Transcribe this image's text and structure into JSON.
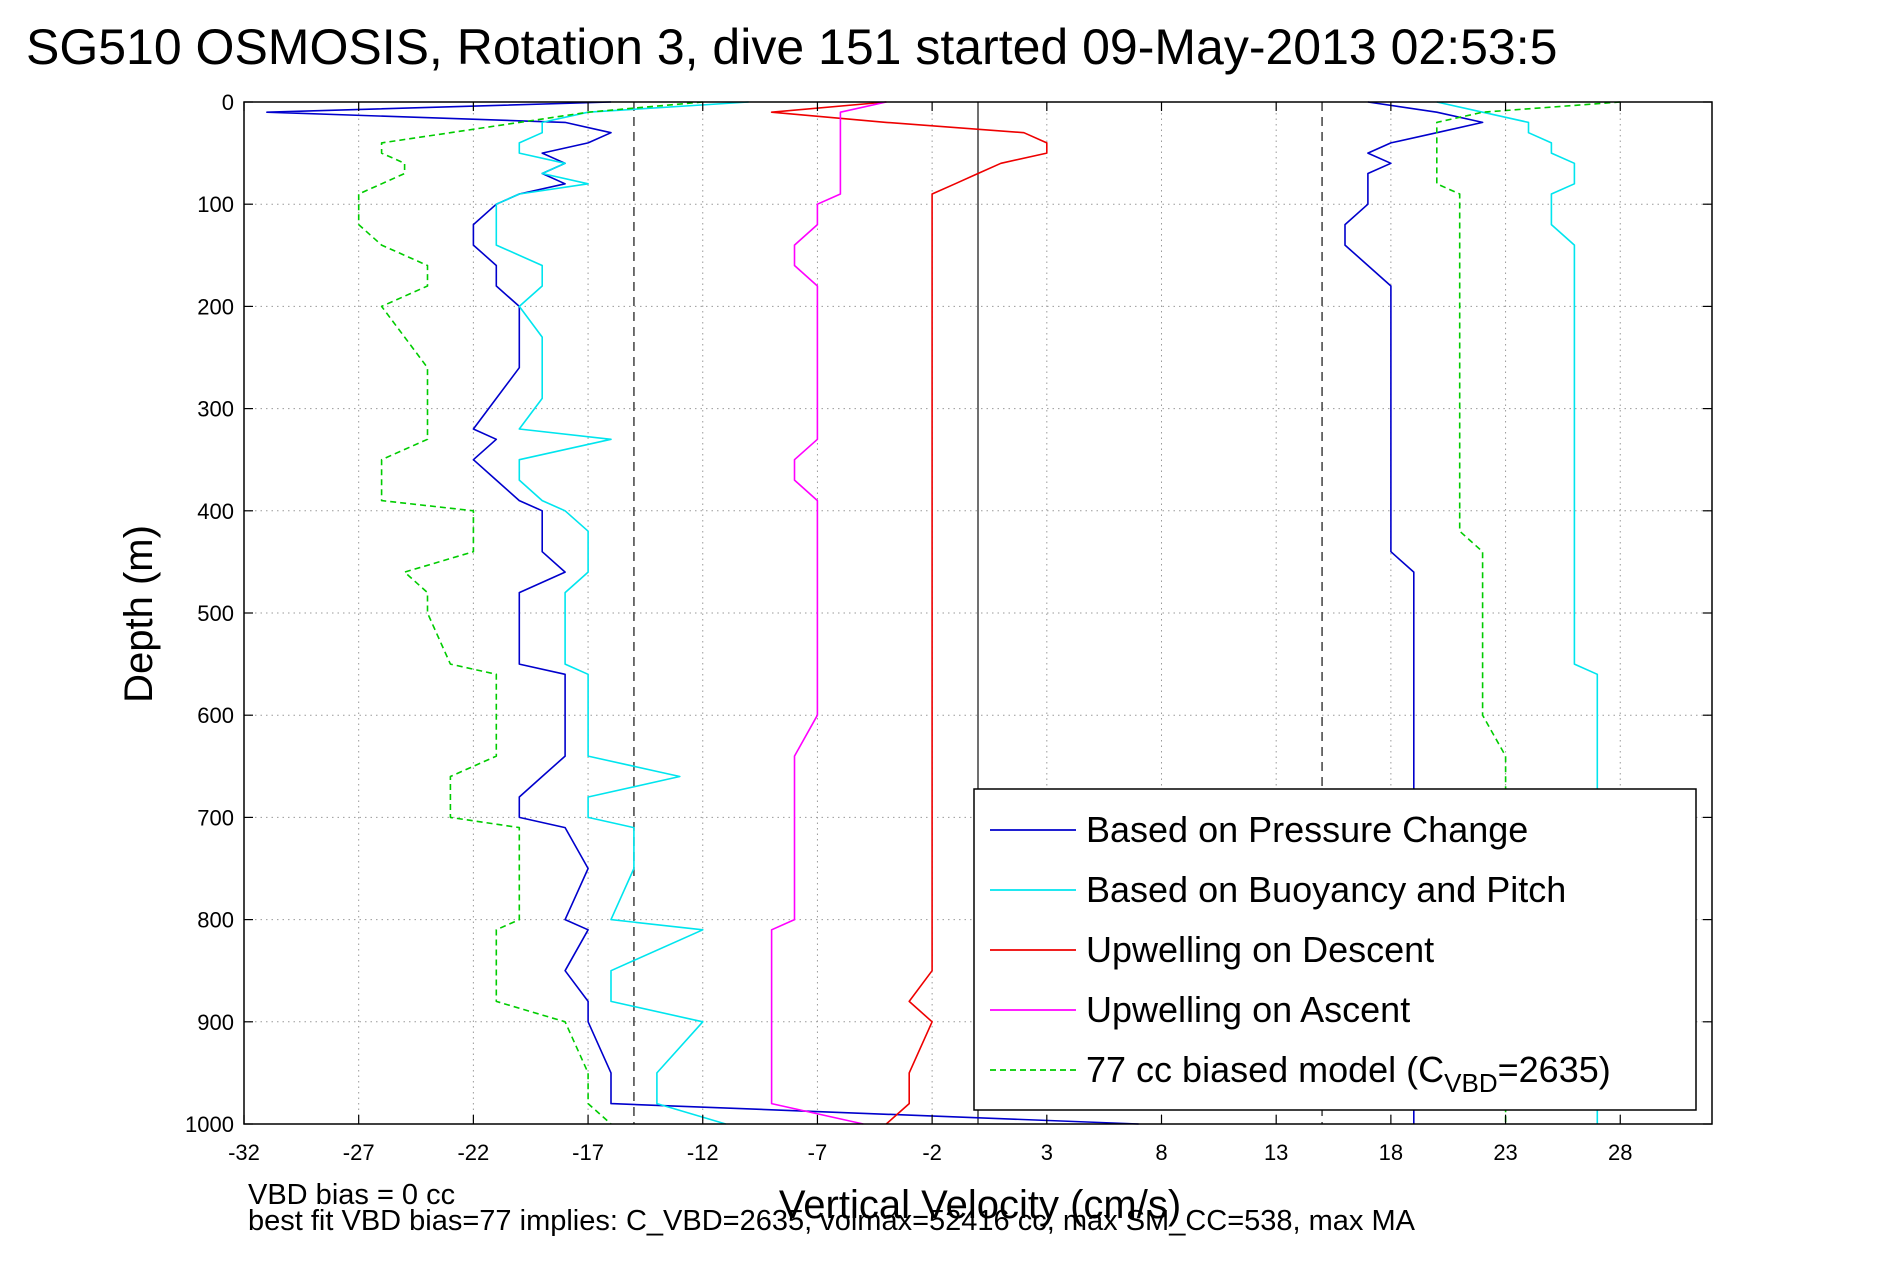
{
  "chart_data": {
    "type": "line",
    "title": "SG510 OSMOSIS, Rotation 3, dive 151 started 09-May-2013 02:53:5",
    "xlabel": "Vertical Velocity (cm/s)",
    "ylabel": "Depth (m)",
    "xlim": [
      -32,
      32
    ],
    "ylim": [
      1000,
      0
    ],
    "y_reversed": true,
    "x_ticks": [
      "-32",
      "-27",
      "-22",
      "-17",
      "-12",
      "-7",
      "-2",
      "3",
      "8",
      "13",
      "18",
      "23",
      "28"
    ],
    "y_ticks": [
      "0",
      "100",
      "200",
      "300",
      "400",
      "500",
      "600",
      "700",
      "800",
      "900",
      "1000"
    ],
    "grid": "dotted",
    "legend_position": "lower-right",
    "reference_lines": [
      {
        "x": -15,
        "style": "dashed"
      },
      {
        "x": 0,
        "style": "solid"
      },
      {
        "x": 15,
        "style": "dashed"
      }
    ],
    "depth": [
      0,
      10,
      20,
      30,
      40,
      50,
      60,
      70,
      80,
      90,
      100,
      120,
      140,
      160,
      180,
      200,
      230,
      260,
      290,
      320,
      330,
      350,
      370,
      390,
      400,
      420,
      440,
      460,
      480,
      500,
      550,
      560,
      600,
      640,
      660,
      680,
      700,
      710,
      750,
      800,
      810,
      850,
      880,
      900,
      950,
      980,
      1000
    ],
    "series": [
      {
        "name": "Based on Pressure Change",
        "color": "#0000cc",
        "style": "solid",
        "segments": [
          {
            "depth": [
              0,
              10,
              20,
              30,
              40,
              50,
              60,
              70,
              80,
              90,
              100,
              120,
              140,
              160,
              180,
              200,
              230,
              260,
              290,
              320,
              330,
              350,
              370,
              390,
              400,
              420,
              440,
              460,
              480,
              500,
              550,
              560,
              600,
              640,
              660,
              680,
              700,
              710,
              750,
              800,
              810,
              850,
              880,
              900,
              950,
              980,
              1000
            ],
            "values": [
              -16,
              -31,
              -18,
              -16,
              -17,
              -19,
              -18,
              -19,
              -18,
              -20,
              -21,
              -22,
              -22,
              -21,
              -21,
              -20,
              -20,
              -20,
              -21,
              -22,
              -21,
              -22,
              -21,
              -20,
              -19,
              -19,
              -19,
              -18,
              -20,
              -20,
              -20,
              -18,
              -18,
              -18,
              -19,
              -20,
              -20,
              -18,
              -17,
              -18,
              -17,
              -18,
              -17,
              -17,
              -16,
              -16,
              7
            ]
          },
          {
            "depth": [
              0,
              10,
              20,
              30,
              40,
              50,
              60,
              70,
              80,
              90,
              100,
              120,
              140,
              160,
              180,
              200,
              230,
              260,
              290,
              320,
              330,
              350,
              370,
              390,
              400,
              420,
              440,
              460,
              480,
              500,
              550,
              560,
              600,
              640,
              660,
              680,
              700,
              710,
              750,
              800,
              810,
              850,
              880,
              900,
              950,
              980,
              1000
            ],
            "values": [
              17,
              20,
              22,
              20,
              18,
              17,
              18,
              17,
              17,
              17,
              17,
              16,
              16,
              17,
              18,
              18,
              18,
              18,
              18,
              18,
              18,
              18,
              18,
              18,
              18,
              18,
              18,
              19,
              19,
              19,
              19,
              19,
              19,
              19,
              19,
              19,
              19,
              19,
              19,
              19,
              19,
              19,
              19,
              19,
              19,
              19,
              19
            ]
          }
        ]
      },
      {
        "name": "Based on Buoyancy and Pitch",
        "color": "#00e5ee",
        "style": "solid",
        "segments": [
          {
            "depth": [
              0,
              10,
              20,
              30,
              40,
              50,
              60,
              70,
              80,
              90,
              100,
              120,
              140,
              160,
              180,
              200,
              230,
              260,
              290,
              320,
              330,
              350,
              370,
              390,
              400,
              420,
              440,
              460,
              480,
              500,
              550,
              560,
              600,
              640,
              660,
              680,
              700,
              710,
              750,
              800,
              810,
              850,
              880,
              900,
              950,
              980,
              1000
            ],
            "values": [
              -10,
              -17,
              -19,
              -19,
              -20,
              -20,
              -18,
              -19,
              -17,
              -20,
              -21,
              -21,
              -21,
              -19,
              -19,
              -20,
              -19,
              -19,
              -19,
              -20,
              -16,
              -20,
              -20,
              -19,
              -18,
              -17,
              -17,
              -17,
              -18,
              -18,
              -18,
              -17,
              -17,
              -17,
              -13,
              -17,
              -17,
              -15,
              -15,
              -16,
              -12,
              -16,
              -16,
              -12,
              -14,
              -14,
              -11
            ]
          },
          {
            "depth": [
              0,
              10,
              20,
              30,
              40,
              50,
              60,
              70,
              80,
              90,
              100,
              120,
              140,
              160,
              180,
              200,
              230,
              260,
              290,
              320,
              330,
              350,
              370,
              390,
              400,
              420,
              440,
              460,
              480,
              500,
              550,
              560,
              600,
              640,
              660,
              680,
              700,
              710,
              750,
              800,
              810,
              850,
              880,
              900,
              950,
              980,
              1000
            ],
            "values": [
              20,
              22,
              24,
              24,
              25,
              25,
              26,
              26,
              26,
              25,
              25,
              25,
              26,
              26,
              26,
              26,
              26,
              26,
              26,
              26,
              26,
              26,
              26,
              26,
              26,
              26,
              26,
              26,
              26,
              26,
              26,
              27,
              27,
              27,
              27,
              27,
              27,
              27,
              27,
              27,
              27,
              27,
              27,
              27,
              27,
              27,
              27
            ]
          }
        ]
      },
      {
        "name": "Upwelling on Descent",
        "color": "#ee0000",
        "style": "solid",
        "segments": [
          {
            "depth": [
              0,
              10,
              20,
              30,
              40,
              50,
              60,
              70,
              80,
              90,
              100,
              120,
              140,
              160,
              180,
              200,
              230,
              260,
              290,
              320,
              330,
              350,
              370,
              390,
              400,
              420,
              440,
              460,
              480,
              500,
              550,
              560,
              600,
              640,
              660,
              680,
              700,
              710,
              750,
              800,
              810,
              850,
              880,
              900,
              950,
              980,
              1000
            ],
            "values": [
              -4,
              -9,
              -4,
              2,
              3,
              3,
              1,
              0,
              -1,
              -2,
              -2,
              -2,
              -2,
              -2,
              -2,
              -2,
              -2,
              -2,
              -2,
              -2,
              -2,
              -2,
              -2,
              -2,
              -2,
              -2,
              -2,
              -2,
              -2,
              -2,
              -2,
              -2,
              -2,
              -2,
              -2,
              -2,
              -2,
              -2,
              -2,
              -2,
              -2,
              -2,
              -3,
              -2,
              -3,
              -3,
              -4
            ]
          }
        ]
      },
      {
        "name": "Upwelling on Ascent",
        "color": "#ff00ff",
        "style": "solid",
        "segments": [
          {
            "depth": [
              0,
              10,
              20,
              30,
              40,
              50,
              60,
              70,
              80,
              90,
              100,
              120,
              140,
              160,
              180,
              200,
              230,
              260,
              290,
              320,
              330,
              350,
              370,
              390,
              400,
              420,
              440,
              460,
              480,
              500,
              550,
              560,
              600,
              640,
              660,
              680,
              700,
              710,
              750,
              800,
              810,
              850,
              880,
              900,
              950,
              980,
              1000
            ],
            "values": [
              -4,
              -6,
              -6,
              -6,
              -6,
              -6,
              -6,
              -6,
              -6,
              -6,
              -7,
              -7,
              -8,
              -8,
              -7,
              -7,
              -7,
              -7,
              -7,
              -7,
              -7,
              -8,
              -8,
              -7,
              -7,
              -7,
              -7,
              -7,
              -7,
              -7,
              -7,
              -7,
              -7,
              -8,
              -8,
              -8,
              -8,
              -8,
              -8,
              -8,
              -9,
              -9,
              -9,
              -9,
              -9,
              -9,
              -5
            ]
          }
        ]
      },
      {
        "name": "77 cc biased model (C_VBD=2635)",
        "color": "#00cc00",
        "style": "dashed",
        "segments": [
          {
            "depth": [
              0,
              10,
              20,
              30,
              40,
              50,
              60,
              70,
              80,
              90,
              100,
              120,
              140,
              160,
              180,
              200,
              230,
              260,
              290,
              320,
              330,
              350,
              370,
              390,
              400,
              420,
              440,
              460,
              480,
              500,
              550,
              560,
              600,
              640,
              660,
              680,
              700,
              710,
              750,
              800,
              810,
              850,
              880,
              900,
              950,
              980,
              1000
            ],
            "values": [
              -12,
              -17,
              -20,
              -23,
              -26,
              -26,
              -25,
              -25,
              -26,
              -27,
              -27,
              -27,
              -26,
              -24,
              -24,
              -26,
              -25,
              -24,
              -24,
              -24,
              -24,
              -26,
              -26,
              -26,
              -22,
              -22,
              -22,
              -25,
              -24,
              -24,
              -23,
              -21,
              -21,
              -21,
              -23,
              -23,
              -23,
              -20,
              -20,
              -20,
              -21,
              -21,
              -21,
              -18,
              -17,
              -17,
              -16
            ]
          },
          {
            "depth": [
              0,
              10,
              20,
              30,
              40,
              50,
              60,
              70,
              80,
              90,
              100,
              120,
              140,
              160,
              180,
              200,
              230,
              260,
              290,
              320,
              330,
              350,
              370,
              390,
              400,
              420,
              440,
              460,
              480,
              500,
              550,
              560,
              600,
              640,
              660,
              680,
              700,
              710,
              750,
              800,
              810,
              850,
              880,
              900,
              950,
              980,
              1000
            ],
            "values": [
              28,
              22,
              20,
              20,
              20,
              20,
              20,
              20,
              20,
              21,
              21,
              21,
              21,
              21,
              21,
              21,
              21,
              21,
              21,
              21,
              21,
              21,
              21,
              21,
              21,
              21,
              22,
              22,
              22,
              22,
              22,
              22,
              22,
              23,
              23,
              23,
              23,
              23,
              23,
              23,
              23,
              23,
              23,
              23,
              23,
              23,
              23
            ]
          }
        ]
      }
    ],
    "legend": [
      {
        "label": "Based on Pressure Change",
        "color": "#0000cc",
        "style": "solid"
      },
      {
        "label": "Based on Buoyancy and Pitch",
        "color": "#00e5ee",
        "style": "solid"
      },
      {
        "label": "Upwelling on Descent",
        "color": "#ee0000",
        "style": "solid"
      },
      {
        "label": "Upwelling on Ascent",
        "color": "#ff00ff",
        "style": "solid"
      },
      {
        "label_prefix": "77 cc biased model (C",
        "label_sub": "VBD",
        "label_suffix": "=2635)",
        "color": "#00cc00",
        "style": "dashed"
      }
    ],
    "annotations": [
      "VBD bias = 0 cc",
      "best fit VBD bias=77 implies: C_VBD=2635, volmax=52416 cc, max SM_CC=538, max MA"
    ]
  }
}
